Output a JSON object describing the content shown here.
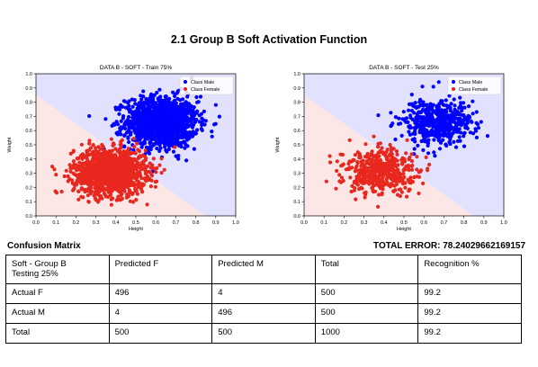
{
  "page": {
    "title": "2.1 Group B Soft Activation Function",
    "confusion_label": "Confusion Matrix",
    "total_error": "TOTAL ERROR: 78.24029662169157"
  },
  "colors": {
    "male": "#0000ff",
    "female": "#e8281e",
    "region_male": "#e2e2ff",
    "region_female": "#fde6e6"
  },
  "chart_data": [
    {
      "type": "scatter",
      "title": "DATA B - SOFT - Train 75%",
      "xlabel": "Height",
      "ylabel": "Weight",
      "xlim": [
        0.0,
        1.0
      ],
      "ylim": [
        0.0,
        1.0
      ],
      "xticks": [
        "0.0",
        "0.1",
        "0.2",
        "0.3",
        "0.4",
        "0.5",
        "0.6",
        "0.7",
        "0.8",
        "0.9",
        "1.0"
      ],
      "yticks": [
        "0.0",
        "0.1",
        "0.2",
        "0.3",
        "0.4",
        "0.5",
        "0.6",
        "0.7",
        "0.8",
        "0.9",
        "1.0"
      ],
      "legend": [
        "Class Male",
        "Class Female"
      ],
      "legend_position": "top-right",
      "decision_boundary": {
        "x1": 0.0,
        "y1": 0.85,
        "x2": 1.0,
        "y2": -0.15
      },
      "series": [
        {
          "name": "Class Male",
          "mean": [
            0.63,
            0.66
          ],
          "std": [
            0.09,
            0.09
          ],
          "n": 1300
        },
        {
          "name": "Class Female",
          "mean": [
            0.37,
            0.31
          ],
          "std": [
            0.09,
            0.08
          ],
          "n": 1300
        }
      ]
    },
    {
      "type": "scatter",
      "title": "DATA B - SOFT - Test 25%",
      "xlabel": "Height",
      "ylabel": "Weight",
      "xlim": [
        0.0,
        1.0
      ],
      "ylim": [
        0.0,
        1.0
      ],
      "xticks": [
        "0.0",
        "0.1",
        "0.2",
        "0.3",
        "0.4",
        "0.5",
        "0.6",
        "0.7",
        "0.8",
        "0.9",
        "1.0"
      ],
      "yticks": [
        "0.0",
        "0.1",
        "0.2",
        "0.3",
        "0.4",
        "0.5",
        "0.6",
        "0.7",
        "0.8",
        "0.9",
        "1.0"
      ],
      "legend": [
        "Class Male",
        "Class Female"
      ],
      "legend_position": "top-right",
      "decision_boundary": {
        "x1": 0.0,
        "y1": 0.85,
        "x2": 1.0,
        "y2": -0.15
      },
      "series": [
        {
          "name": "Class Male",
          "mean": [
            0.66,
            0.66
          ],
          "std": [
            0.09,
            0.08
          ],
          "n": 500
        },
        {
          "name": "Class Female",
          "mean": [
            0.38,
            0.31
          ],
          "std": [
            0.09,
            0.08
          ],
          "n": 500
        }
      ]
    }
  ],
  "table": {
    "headers": [
      "Soft - Group B\nTesting 25%",
      "Predicted F",
      "Predicted M",
      "Total",
      "Recognition %"
    ],
    "rows": [
      [
        "Actual F",
        "496",
        "4",
        "500",
        "99.2"
      ],
      [
        "Actual M",
        "4",
        "496",
        "500",
        "99.2"
      ],
      [
        "Total",
        "500",
        "500",
        "1000",
        "99.2"
      ]
    ]
  }
}
